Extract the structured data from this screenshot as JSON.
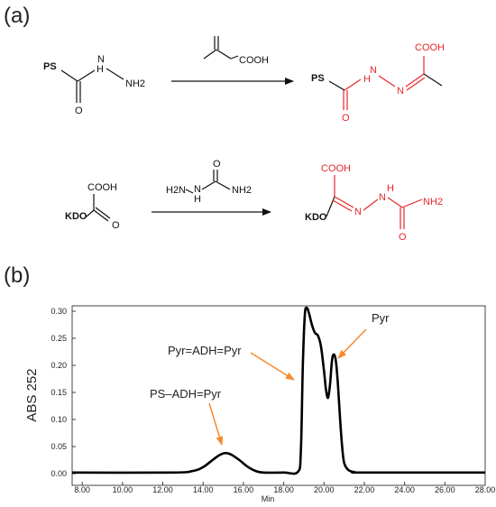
{
  "panel_labels": {
    "a": "(a)",
    "b": "(b)"
  },
  "scheme": {
    "r1": {
      "ps_label": "PS",
      "hydrazide_h": "H",
      "hydrazide_n": "N",
      "nh2": "NH2",
      "o": "O",
      "reagent_cooh": "COOH",
      "product_ps": "PS",
      "product_cooh": "COOH",
      "product_h": "H",
      "product_n1": "N",
      "product_n2": "N",
      "product_o": "O"
    },
    "r2": {
      "kdo_label": "KDO",
      "cooh": "COOH",
      "o": "O",
      "reagent_h2n": "H2N",
      "reagent_nh": "N",
      "reagent_h": "H",
      "reagent_o": "O",
      "reagent_nh2": "NH2",
      "product_kdo": "KDO",
      "product_cooh": "COOH",
      "product_n": "N",
      "product_nh": "N",
      "product_h": "H",
      "product_nh2": "NH2",
      "product_o": "O"
    }
  },
  "chart_data": {
    "type": "line",
    "xlabel": "Min",
    "ylabel": "ABS 252",
    "xlim": [
      7.5,
      28.0
    ],
    "ylim": [
      0.0,
      0.31
    ],
    "x_ticks": [
      8,
      10,
      12,
      14,
      16,
      18,
      20,
      22,
      24,
      26,
      28
    ],
    "x_tick_labels": [
      "8.00",
      "10.00",
      "12.00",
      "14.00",
      "16.00",
      "18.00",
      "20.00",
      "22.00",
      "24.00",
      "26.00",
      "28.00"
    ],
    "y_ticks": [
      0.0,
      0.05,
      0.1,
      0.15,
      0.2,
      0.25,
      0.3
    ],
    "y_tick_labels": [
      "0.00",
      "0.05",
      "0.10",
      "0.15",
      "0.20",
      "0.25",
      "0.30"
    ],
    "grid": false,
    "series": [
      {
        "color": "#000000",
        "x": [
          7.5,
          12.5,
          13.5,
          14.0,
          14.5,
          14.8,
          15.1,
          15.4,
          15.8,
          16.2,
          16.6,
          17.0,
          18.0,
          18.7,
          18.85,
          18.95,
          19.05,
          19.15,
          19.25,
          19.4,
          19.55,
          19.7,
          19.85,
          20.0,
          20.1,
          20.2,
          20.3,
          20.4,
          20.5,
          20.6,
          20.7,
          20.8,
          20.9,
          21.0,
          21.2,
          21.5,
          22.0,
          28.0
        ],
        "y": [
          0.002,
          0.002,
          0.005,
          0.012,
          0.026,
          0.034,
          0.038,
          0.035,
          0.025,
          0.013,
          0.005,
          0.002,
          0.002,
          0.003,
          0.04,
          0.2,
          0.294,
          0.306,
          0.297,
          0.275,
          0.26,
          0.255,
          0.235,
          0.19,
          0.155,
          0.14,
          0.165,
          0.21,
          0.22,
          0.205,
          0.16,
          0.1,
          0.05,
          0.02,
          0.007,
          0.003,
          0.002,
          0.002
        ]
      }
    ],
    "annotations": [
      {
        "text": "PS–ADH=Pyr",
        "x": 15.1,
        "y": 0.038
      },
      {
        "text": "Pyr=ADH=Pyr",
        "x": 18.9,
        "y": 0.225
      },
      {
        "text": "Pyr",
        "x": 20.45,
        "y": 0.215
      }
    ],
    "annotation_color": "#f58a2e"
  }
}
